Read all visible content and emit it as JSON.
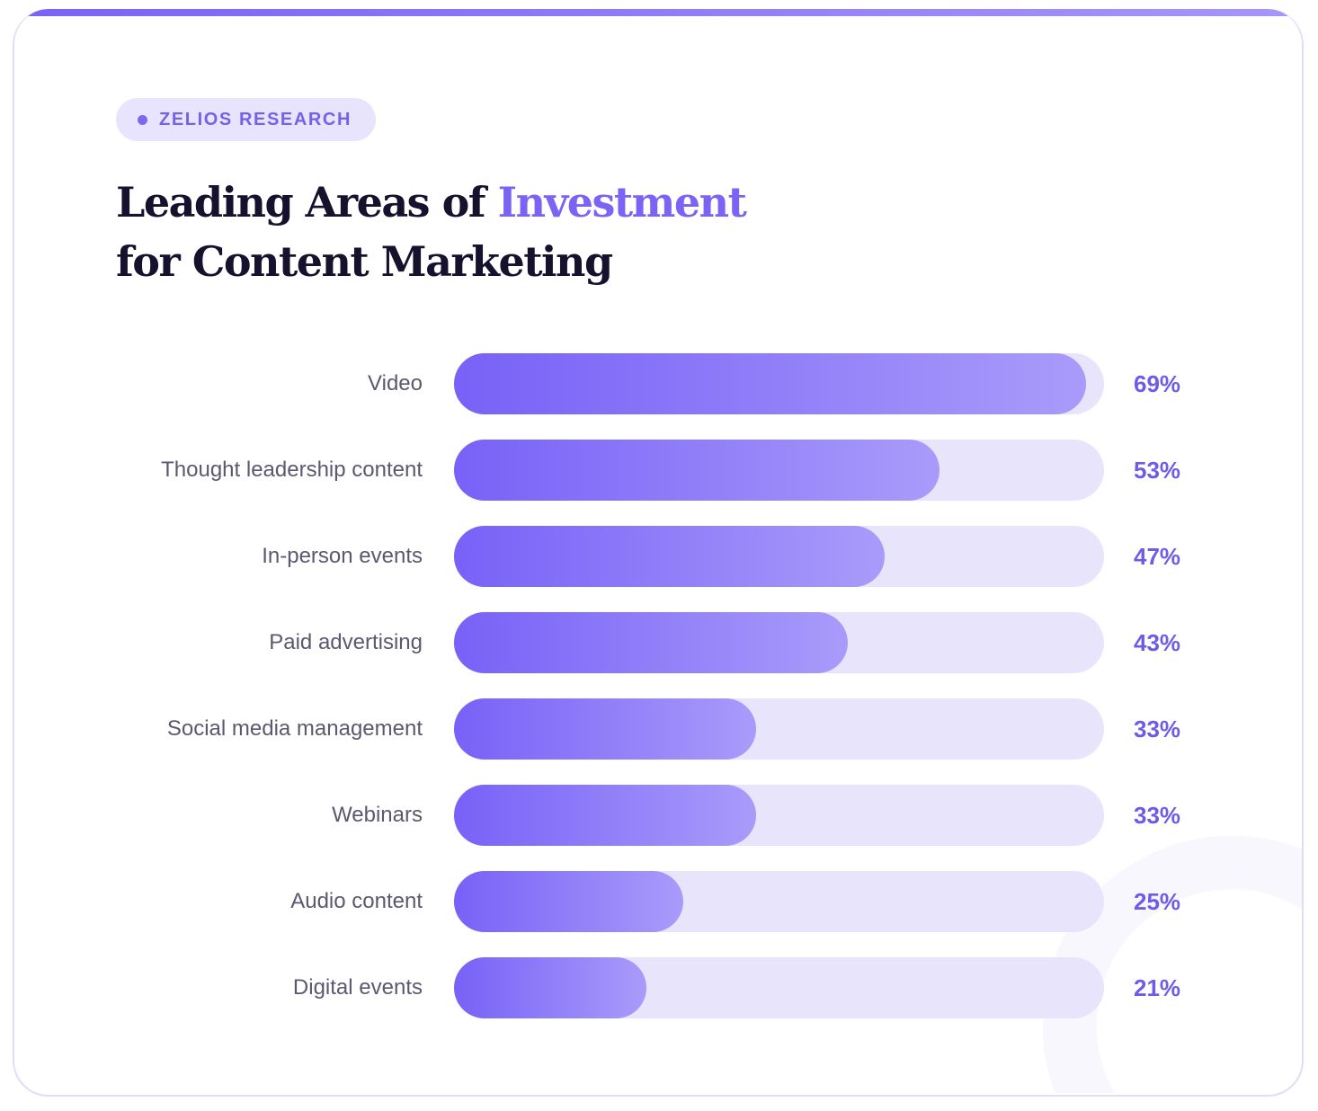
{
  "badge": {
    "label": "ZELIOS RESEARCH"
  },
  "chart_data": {
    "type": "bar",
    "orientation": "horizontal",
    "title_part1": "Leading Areas of ",
    "title_highlight": "Investment",
    "title_line2": "for Content Marketing",
    "categories": [
      "Video",
      "Thought leadership content",
      "In-person events",
      "Paid advertising",
      "Social media management",
      "Webinars",
      "Audio content",
      "Digital events"
    ],
    "values": [
      69,
      53,
      47,
      43,
      33,
      33,
      25,
      21
    ],
    "value_labels": [
      "69%",
      "53%",
      "47%",
      "43%",
      "33%",
      "33%",
      "25%",
      "21%"
    ],
    "xlim": [
      0,
      71
    ],
    "grid": false,
    "colors": {
      "fill_start": "#7861f7",
      "fill_end": "#a99bfa",
      "track": "#e8e4fc",
      "value": "#6d5ce8",
      "accent": "#7a63f5"
    }
  }
}
